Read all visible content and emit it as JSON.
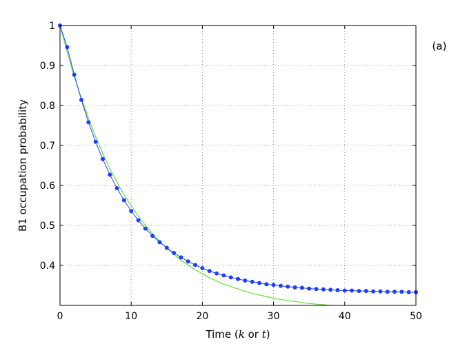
{
  "chart_data": {
    "type": "line",
    "title": "",
    "panel_label": "(a)",
    "xlabel": "Time (k or t)",
    "xlabel_parts": {
      "prefix": "Time (",
      "var1": "k",
      "middle": " or ",
      "var2": "t",
      "suffix": ")"
    },
    "ylabel": "B1 occupation probability",
    "xlim": [
      0,
      50
    ],
    "ylim": [
      0.3,
      1.0
    ],
    "xticks": [
      0,
      10,
      20,
      30,
      40,
      50
    ],
    "yticks": [
      0.4,
      0.5,
      0.6,
      0.7,
      0.8,
      0.9,
      1
    ],
    "grid": true,
    "grid_style": "dotted",
    "colors": {
      "discrete": "#1f3fff",
      "continuous": "#66dd33",
      "axis": "#000000",
      "grid": "#777777"
    },
    "series": [
      {
        "style": "line-with-dots",
        "color": "#1f3fff",
        "x": [
          0,
          1,
          2,
          3,
          4,
          5,
          6,
          7,
          8,
          9,
          10,
          11,
          12,
          13,
          14,
          15,
          16,
          17,
          18,
          19,
          20,
          21,
          22,
          23,
          24,
          25,
          26,
          27,
          28,
          29,
          30,
          31,
          32,
          33,
          34,
          35,
          36,
          37,
          38,
          39,
          40,
          41,
          42,
          43,
          44,
          45,
          46,
          47,
          48,
          49,
          50
        ],
        "y": [
          1.0,
          0.946,
          0.877,
          0.814,
          0.758,
          0.709,
          0.666,
          0.627,
          0.593,
          0.563,
          0.536,
          0.513,
          0.492,
          0.474,
          0.458,
          0.444,
          0.431,
          0.42,
          0.41,
          0.401,
          0.393,
          0.386,
          0.38,
          0.375,
          0.37,
          0.366,
          0.362,
          0.359,
          0.356,
          0.353,
          0.351,
          0.349,
          0.347,
          0.345,
          0.344,
          0.342,
          0.341,
          0.34,
          0.339,
          0.338,
          0.337,
          0.337,
          0.336,
          0.336,
          0.335,
          0.335,
          0.334,
          0.334,
          0.334,
          0.333,
          0.333
        ]
      },
      {
        "style": "line",
        "color": "#66dd33",
        "x": [
          0,
          1,
          2,
          3,
          4,
          5,
          6,
          7,
          8,
          9,
          10,
          11,
          12,
          13,
          14,
          15,
          16,
          17,
          18,
          19,
          20,
          21,
          22,
          23,
          24,
          25,
          26,
          27,
          28,
          29,
          30,
          31,
          32,
          33,
          34,
          35,
          36,
          37,
          38,
          39,
          40,
          41,
          42,
          43,
          44,
          45,
          46,
          47,
          48,
          49,
          50
        ],
        "y": [
          1.0,
          0.934,
          0.873,
          0.818,
          0.768,
          0.722,
          0.68,
          0.642,
          0.608,
          0.577,
          0.549,
          0.523,
          0.5,
          0.479,
          0.46,
          0.443,
          0.427,
          0.413,
          0.401,
          0.389,
          0.379,
          0.369,
          0.361,
          0.353,
          0.347,
          0.341,
          0.335,
          0.33,
          0.326,
          0.322,
          0.318,
          0.315,
          0.312,
          0.31,
          0.307,
          0.305,
          0.303,
          0.302,
          0.3,
          0.299,
          0.298,
          0.297,
          0.296,
          0.295,
          0.294,
          0.294,
          0.293,
          0.293,
          0.292,
          0.292,
          0.291
        ]
      }
    ]
  }
}
